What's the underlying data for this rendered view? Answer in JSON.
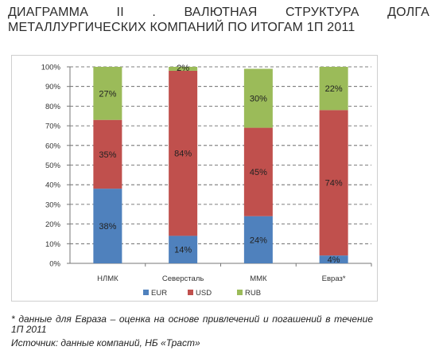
{
  "header": {
    "title_line1": "ДИАГРАММА II . ВАЛЮТНАЯ СТРУКТУРА ДОЛГА",
    "title_line2": "МЕТАЛЛУРГИЧЕСКИХ КОМПАНИЙ ПО ИТОГАМ 1П 2011"
  },
  "footer": {
    "note": "* данные для Евраза – оценка на основе привлечений и погашений в течение 1П 2011",
    "source": "Источник: данные компаний, НБ «Траст»"
  },
  "colors": {
    "EUR": "#4f81bd",
    "USD": "#c0504d",
    "RUB": "#9bbb59"
  },
  "chart_data": {
    "type": "bar",
    "stacked": true,
    "categories": [
      "НЛМК",
      "Северсталь",
      "ММК",
      "Евраз*"
    ],
    "series": [
      {
        "name": "EUR",
        "values": [
          38,
          14,
          24,
          4
        ],
        "labels": [
          "38%",
          "14%",
          "24%",
          "4%"
        ]
      },
      {
        "name": "USD",
        "values": [
          35,
          84,
          45,
          74
        ],
        "labels": [
          "35%",
          "84%",
          "45%",
          "74%"
        ]
      },
      {
        "name": "RUB",
        "values": [
          27,
          2,
          30,
          22
        ],
        "labels": [
          "27%",
          "2%",
          "30%",
          "22%"
        ]
      }
    ],
    "ylim": [
      0,
      100
    ],
    "yticks": [
      "0%",
      "10%",
      "20%",
      "30%",
      "40%",
      "50%",
      "60%",
      "70%",
      "80%",
      "90%",
      "100%"
    ],
    "grid": true,
    "legend_position": "bottom"
  }
}
